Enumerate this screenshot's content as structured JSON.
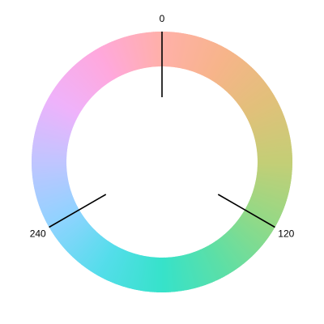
{
  "chart_data": {
    "type": "polar",
    "title": "",
    "xlabel": "",
    "ylabel": "",
    "angle_unit": "degrees",
    "angle_range": [
      0,
      360
    ],
    "direction": "clockwise",
    "zero_position": "top",
    "ticks": [
      {
        "value": 0,
        "label": "0"
      },
      {
        "value": 120,
        "label": "120"
      },
      {
        "value": 240,
        "label": "240"
      }
    ],
    "hue_wheel": {
      "chroma_style": "pastel",
      "colors_by_angle": [
        {
          "angle": 0,
          "color": "#FFB0A8"
        },
        {
          "angle": 30,
          "color": "#F7B48A"
        },
        {
          "angle": 60,
          "color": "#E1C07A"
        },
        {
          "angle": 90,
          "color": "#C4CE76"
        },
        {
          "angle": 120,
          "color": "#93D986"
        },
        {
          "angle": 150,
          "color": "#5DDFA6"
        },
        {
          "angle": 180,
          "color": "#36E2CA"
        },
        {
          "angle": 210,
          "color": "#55DDEB"
        },
        {
          "angle": 240,
          "color": "#8FD3FF"
        },
        {
          "angle": 270,
          "color": "#C0C5FF"
        },
        {
          "angle": 300,
          "color": "#EFB2FB"
        },
        {
          "angle": 330,
          "color": "#FFA8DC"
        },
        {
          "angle": 360,
          "color": "#FFB0A8"
        }
      ]
    },
    "grid": false,
    "legend": "none"
  }
}
